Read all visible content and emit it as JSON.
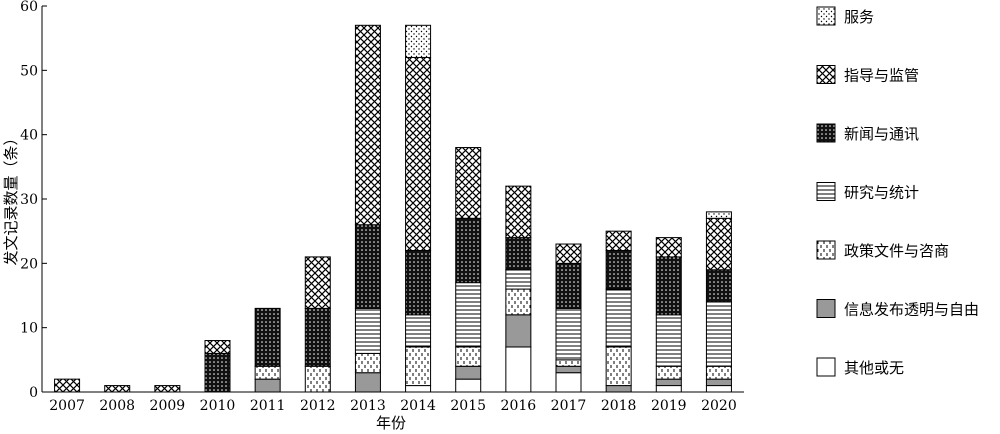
{
  "chart_data": {
    "type": "bar",
    "stacked": true,
    "xlabel": "年份",
    "ylabel": "发文记录数量（条）",
    "ylim": [
      0,
      60
    ],
    "yticks": [
      0,
      10,
      20,
      30,
      40,
      50,
      60
    ],
    "categories": [
      "2007",
      "2008",
      "2009",
      "2010",
      "2011",
      "2012",
      "2013",
      "2014",
      "2015",
      "2016",
      "2017",
      "2018",
      "2019",
      "2020"
    ],
    "series": [
      {
        "name": "其他或无",
        "pattern": "none",
        "values": [
          0,
          0,
          0,
          0,
          0,
          0,
          0,
          1,
          2,
          7,
          3,
          0,
          1,
          1
        ]
      },
      {
        "name": "信息发布透明与自由",
        "pattern": "solid-gray",
        "values": [
          0,
          0,
          0,
          0,
          2,
          0,
          3,
          0,
          2,
          5,
          1,
          1,
          1,
          1
        ]
      },
      {
        "name": "政策文件与咨商",
        "pattern": "dashes",
        "values": [
          0,
          0,
          0,
          0,
          2,
          4,
          3,
          6,
          3,
          4,
          1,
          6,
          2,
          2
        ]
      },
      {
        "name": "研究与统计",
        "pattern": "hlines",
        "values": [
          0,
          0,
          0,
          0,
          0,
          0,
          7,
          5,
          10,
          3,
          8,
          9,
          8,
          10
        ]
      },
      {
        "name": "新闻与通讯",
        "pattern": "dense",
        "values": [
          0,
          0,
          0,
          6,
          9,
          9,
          13,
          10,
          10,
          5,
          7,
          6,
          9,
          5
        ]
      },
      {
        "name": "指导与监管",
        "pattern": "crosshatch",
        "values": [
          2,
          1,
          1,
          2,
          0,
          8,
          31,
          30,
          11,
          8,
          3,
          3,
          3,
          8
        ]
      },
      {
        "name": "服务",
        "pattern": "dots",
        "values": [
          0,
          0,
          0,
          0,
          0,
          0,
          0,
          5,
          0,
          0,
          0,
          0,
          0,
          1
        ]
      }
    ],
    "legend_order": [
      "服务",
      "指导与监管",
      "新闻与通讯",
      "研究与统计",
      "政策文件与咨商",
      "信息发布透明与自由",
      "其他或无"
    ],
    "legend_position": "right",
    "grid": false
  }
}
